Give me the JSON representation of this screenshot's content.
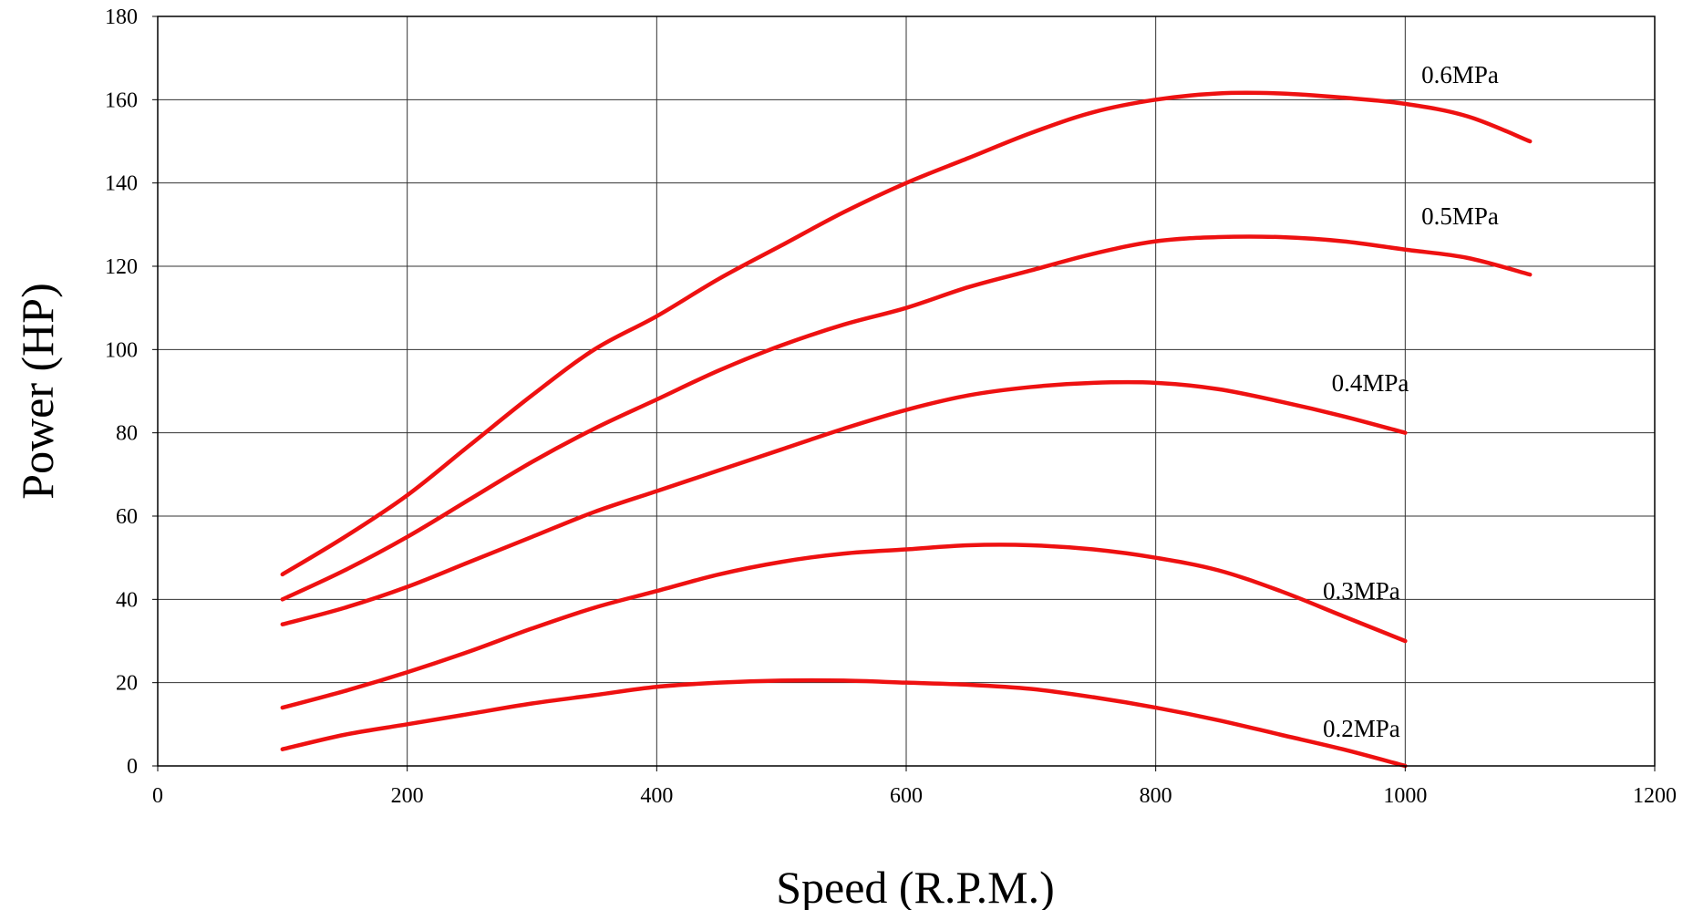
{
  "chart_data": {
    "type": "line",
    "xlabel": "Speed (R.P.M.)",
    "ylabel": "Power (HP)",
    "xlim": [
      0,
      1200
    ],
    "ylim": [
      0,
      180
    ],
    "xticks": [
      "0",
      "200",
      "400",
      "600",
      "800",
      "1000",
      "1200"
    ],
    "yticks": [
      "0",
      "20",
      "40",
      "60",
      "80",
      "100",
      "120",
      "140",
      "160",
      "180"
    ],
    "grid": true,
    "line_color": "#ee1111",
    "series": [
      {
        "name": "0.6MPa",
        "x": [
          100,
          150,
          200,
          250,
          300,
          350,
          400,
          450,
          500,
          550,
          600,
          650,
          700,
          750,
          800,
          850,
          900,
          950,
          1000,
          1050,
          1100
        ],
        "y": [
          46,
          55,
          65,
          77,
          89,
          100,
          108,
          117,
          125,
          133,
          140,
          146,
          152,
          157,
          160,
          161.5,
          161.5,
          160.5,
          159,
          156,
          150
        ]
      },
      {
        "name": "0.5MPa",
        "x": [
          100,
          150,
          200,
          250,
          300,
          350,
          400,
          450,
          500,
          550,
          600,
          650,
          700,
          750,
          800,
          850,
          900,
          950,
          1000,
          1050,
          1100
        ],
        "y": [
          40,
          47,
          55,
          64,
          73,
          81,
          88,
          95,
          101,
          106,
          110,
          115,
          119,
          123,
          126,
          127,
          127,
          126,
          124,
          122,
          118
        ]
      },
      {
        "name": "0.4MPa",
        "x": [
          100,
          150,
          200,
          250,
          300,
          350,
          400,
          450,
          500,
          550,
          600,
          650,
          700,
          750,
          800,
          850,
          900,
          950,
          1000
        ],
        "y": [
          34,
          38,
          43,
          49,
          55,
          61,
          66,
          71,
          76,
          81,
          85.5,
          89,
          91,
          92,
          92,
          90.5,
          87.5,
          84,
          80
        ]
      },
      {
        "name": "0.3MPa",
        "x": [
          100,
          150,
          200,
          250,
          300,
          350,
          400,
          450,
          500,
          550,
          600,
          650,
          700,
          750,
          800,
          850,
          900,
          950,
          1000
        ],
        "y": [
          14,
          18,
          22.5,
          27.5,
          33,
          38,
          42,
          46,
          49,
          51,
          52,
          53,
          53,
          52,
          50,
          47,
          42,
          36,
          30
        ]
      },
      {
        "name": "0.2MPa",
        "x": [
          100,
          150,
          200,
          250,
          300,
          350,
          400,
          450,
          500,
          550,
          600,
          650,
          700,
          750,
          800,
          850,
          900,
          950,
          1000
        ],
        "y": [
          4,
          7.5,
          10,
          12.5,
          15,
          17,
          19,
          20,
          20.5,
          20.5,
          20,
          19.5,
          18.5,
          16.5,
          14,
          11,
          7.5,
          4,
          0
        ]
      }
    ],
    "labels": [
      {
        "text": "0.6MPa",
        "x": 1013,
        "y": 166
      },
      {
        "text": "0.5MPa",
        "x": 1013,
        "y": 132
      },
      {
        "text": "0.4MPa",
        "x": 941,
        "y": 92
      },
      {
        "text": "0.3MPa",
        "x": 934,
        "y": 42
      },
      {
        "text": "0.2MPa",
        "x": 934,
        "y": 9
      }
    ]
  }
}
